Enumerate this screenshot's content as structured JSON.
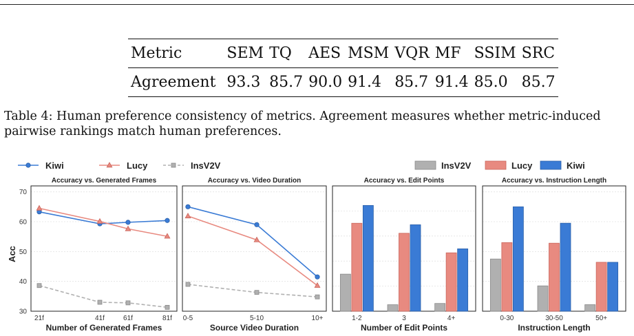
{
  "table": {
    "headers": [
      "Metric",
      "SEM",
      "TQ",
      "AES",
      "MSM",
      "VQR",
      "MF",
      "SSIM",
      "SRC"
    ],
    "row": [
      "Agreement",
      "93.3",
      "85.7",
      "90.0",
      "91.4",
      "85.7",
      "91.4",
      "85.0",
      "85.7"
    ]
  },
  "caption": "Table 4: Human preference consistency of metrics. Agreement measures whether metric-induced pairwise rankings match human preferences.",
  "colors": {
    "kiwi": "#3a7bd5",
    "lucy": "#e88a80",
    "insv2v": "#b0b0b0"
  },
  "legend_left": [
    "Kiwi",
    "Lucy",
    "InsV2V"
  ],
  "legend_right": [
    "InsV2V",
    "Lucy",
    "Kiwi"
  ],
  "ylabel": "Acc",
  "chart_data": [
    {
      "type": "line",
      "title": "Accuracy vs. Generated Frames",
      "xlabel": "Number of Generated Frames",
      "categories": [
        "21f",
        "41f",
        "61f",
        "81f"
      ],
      "ylim": [
        30,
        72
      ],
      "yticks": [
        "30",
        "40",
        "50",
        "60",
        "70"
      ],
      "series": [
        {
          "name": "Kiwi",
          "values": [
            63.3,
            59.3,
            59.8,
            60.4
          ]
        },
        {
          "name": "Lucy",
          "values": [
            64.5,
            60.1,
            57.6,
            55.1
          ]
        },
        {
          "name": "InsV2V",
          "values": [
            38.6,
            33.0,
            32.8,
            31.3
          ]
        }
      ]
    },
    {
      "type": "line",
      "title": "Accuracy vs. Video Duration",
      "xlabel": "Source Video Duration",
      "categories": [
        "0-5",
        "5-10",
        "10+"
      ],
      "ylim": [
        30,
        72
      ],
      "series": [
        {
          "name": "Kiwi",
          "values": [
            65.0,
            59.0,
            41.5
          ]
        },
        {
          "name": "Lucy",
          "values": [
            61.9,
            53.9,
            38.6
          ]
        },
        {
          "name": "InsV2V",
          "values": [
            39.0,
            36.3,
            34.8
          ]
        }
      ]
    },
    {
      "type": "bar",
      "title": "Accuracy vs. Edit Points",
      "xlabel": "Number of Edit Points",
      "categories": [
        "1-2",
        "3",
        "4+"
      ],
      "ylim": [
        20,
        70
      ],
      "series": [
        {
          "name": "InsV2V",
          "values": [
            34.8,
            22.6,
            23.1
          ]
        },
        {
          "name": "Lucy",
          "values": [
            55.1,
            51.1,
            43.3
          ]
        },
        {
          "name": "Kiwi",
          "values": [
            62.2,
            54.5,
            44.9
          ]
        }
      ]
    },
    {
      "type": "bar",
      "title": "Accuracy vs. Instruction Length",
      "xlabel": "Instruction Length",
      "categories": [
        "0-30",
        "30-50",
        "50+"
      ],
      "ylim": [
        30,
        72
      ],
      "series": [
        {
          "name": "InsV2V",
          "values": [
            47.5,
            38.5,
            32.2
          ]
        },
        {
          "name": "Lucy",
          "values": [
            53.0,
            52.8,
            46.4
          ]
        },
        {
          "name": "Kiwi",
          "values": [
            65.0,
            59.5,
            46.4
          ]
        }
      ]
    }
  ]
}
